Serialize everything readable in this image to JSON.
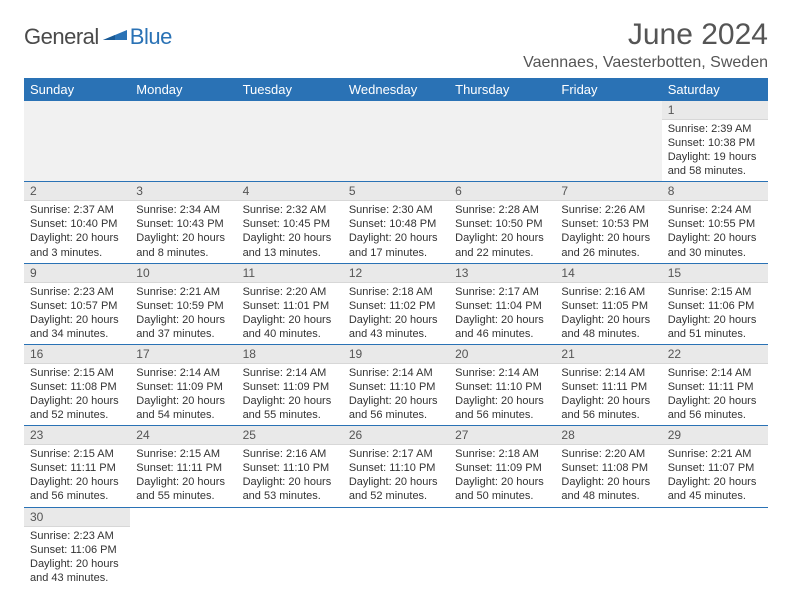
{
  "brand": {
    "gen": "General",
    "blue": "Blue"
  },
  "title": "June 2024",
  "location": "Vaennaes, Vaesterbotten, Sweden",
  "dayHeaders": [
    "Sunday",
    "Monday",
    "Tuesday",
    "Wednesday",
    "Thursday",
    "Friday",
    "Saturday"
  ],
  "colors": {
    "headerBg": "#2a72b5",
    "headerText": "#ffffff",
    "dayHeaderBg": "#e9e9e9",
    "bodyText": "#333333",
    "titleText": "#555555"
  },
  "days": {
    "1": {
      "sunrise": "Sunrise: 2:39 AM",
      "sunset": "Sunset: 10:38 PM",
      "daylight1": "Daylight: 19 hours",
      "daylight2": "and 58 minutes."
    },
    "2": {
      "sunrise": "Sunrise: 2:37 AM",
      "sunset": "Sunset: 10:40 PM",
      "daylight1": "Daylight: 20 hours",
      "daylight2": "and 3 minutes."
    },
    "3": {
      "sunrise": "Sunrise: 2:34 AM",
      "sunset": "Sunset: 10:43 PM",
      "daylight1": "Daylight: 20 hours",
      "daylight2": "and 8 minutes."
    },
    "4": {
      "sunrise": "Sunrise: 2:32 AM",
      "sunset": "Sunset: 10:45 PM",
      "daylight1": "Daylight: 20 hours",
      "daylight2": "and 13 minutes."
    },
    "5": {
      "sunrise": "Sunrise: 2:30 AM",
      "sunset": "Sunset: 10:48 PM",
      "daylight1": "Daylight: 20 hours",
      "daylight2": "and 17 minutes."
    },
    "6": {
      "sunrise": "Sunrise: 2:28 AM",
      "sunset": "Sunset: 10:50 PM",
      "daylight1": "Daylight: 20 hours",
      "daylight2": "and 22 minutes."
    },
    "7": {
      "sunrise": "Sunrise: 2:26 AM",
      "sunset": "Sunset: 10:53 PM",
      "daylight1": "Daylight: 20 hours",
      "daylight2": "and 26 minutes."
    },
    "8": {
      "sunrise": "Sunrise: 2:24 AM",
      "sunset": "Sunset: 10:55 PM",
      "daylight1": "Daylight: 20 hours",
      "daylight2": "and 30 minutes."
    },
    "9": {
      "sunrise": "Sunrise: 2:23 AM",
      "sunset": "Sunset: 10:57 PM",
      "daylight1": "Daylight: 20 hours",
      "daylight2": "and 34 minutes."
    },
    "10": {
      "sunrise": "Sunrise: 2:21 AM",
      "sunset": "Sunset: 10:59 PM",
      "daylight1": "Daylight: 20 hours",
      "daylight2": "and 37 minutes."
    },
    "11": {
      "sunrise": "Sunrise: 2:20 AM",
      "sunset": "Sunset: 11:01 PM",
      "daylight1": "Daylight: 20 hours",
      "daylight2": "and 40 minutes."
    },
    "12": {
      "sunrise": "Sunrise: 2:18 AM",
      "sunset": "Sunset: 11:02 PM",
      "daylight1": "Daylight: 20 hours",
      "daylight2": "and 43 minutes."
    },
    "13": {
      "sunrise": "Sunrise: 2:17 AM",
      "sunset": "Sunset: 11:04 PM",
      "daylight1": "Daylight: 20 hours",
      "daylight2": "and 46 minutes."
    },
    "14": {
      "sunrise": "Sunrise: 2:16 AM",
      "sunset": "Sunset: 11:05 PM",
      "daylight1": "Daylight: 20 hours",
      "daylight2": "and 48 minutes."
    },
    "15": {
      "sunrise": "Sunrise: 2:15 AM",
      "sunset": "Sunset: 11:06 PM",
      "daylight1": "Daylight: 20 hours",
      "daylight2": "and 51 minutes."
    },
    "16": {
      "sunrise": "Sunrise: 2:15 AM",
      "sunset": "Sunset: 11:08 PM",
      "daylight1": "Daylight: 20 hours",
      "daylight2": "and 52 minutes."
    },
    "17": {
      "sunrise": "Sunrise: 2:14 AM",
      "sunset": "Sunset: 11:09 PM",
      "daylight1": "Daylight: 20 hours",
      "daylight2": "and 54 minutes."
    },
    "18": {
      "sunrise": "Sunrise: 2:14 AM",
      "sunset": "Sunset: 11:09 PM",
      "daylight1": "Daylight: 20 hours",
      "daylight2": "and 55 minutes."
    },
    "19": {
      "sunrise": "Sunrise: 2:14 AM",
      "sunset": "Sunset: 11:10 PM",
      "daylight1": "Daylight: 20 hours",
      "daylight2": "and 56 minutes."
    },
    "20": {
      "sunrise": "Sunrise: 2:14 AM",
      "sunset": "Sunset: 11:10 PM",
      "daylight1": "Daylight: 20 hours",
      "daylight2": "and 56 minutes."
    },
    "21": {
      "sunrise": "Sunrise: 2:14 AM",
      "sunset": "Sunset: 11:11 PM",
      "daylight1": "Daylight: 20 hours",
      "daylight2": "and 56 minutes."
    },
    "22": {
      "sunrise": "Sunrise: 2:14 AM",
      "sunset": "Sunset: 11:11 PM",
      "daylight1": "Daylight: 20 hours",
      "daylight2": "and 56 minutes."
    },
    "23": {
      "sunrise": "Sunrise: 2:15 AM",
      "sunset": "Sunset: 11:11 PM",
      "daylight1": "Daylight: 20 hours",
      "daylight2": "and 56 minutes."
    },
    "24": {
      "sunrise": "Sunrise: 2:15 AM",
      "sunset": "Sunset: 11:11 PM",
      "daylight1": "Daylight: 20 hours",
      "daylight2": "and 55 minutes."
    },
    "25": {
      "sunrise": "Sunrise: 2:16 AM",
      "sunset": "Sunset: 11:10 PM",
      "daylight1": "Daylight: 20 hours",
      "daylight2": "and 53 minutes."
    },
    "26": {
      "sunrise": "Sunrise: 2:17 AM",
      "sunset": "Sunset: 11:10 PM",
      "daylight1": "Daylight: 20 hours",
      "daylight2": "and 52 minutes."
    },
    "27": {
      "sunrise": "Sunrise: 2:18 AM",
      "sunset": "Sunset: 11:09 PM",
      "daylight1": "Daylight: 20 hours",
      "daylight2": "and 50 minutes."
    },
    "28": {
      "sunrise": "Sunrise: 2:20 AM",
      "sunset": "Sunset: 11:08 PM",
      "daylight1": "Daylight: 20 hours",
      "daylight2": "and 48 minutes."
    },
    "29": {
      "sunrise": "Sunrise: 2:21 AM",
      "sunset": "Sunset: 11:07 PM",
      "daylight1": "Daylight: 20 hours",
      "daylight2": "and 45 minutes."
    },
    "30": {
      "sunrise": "Sunrise: 2:23 AM",
      "sunset": "Sunset: 11:06 PM",
      "daylight1": "Daylight: 20 hours",
      "daylight2": "and 43 minutes."
    }
  },
  "layout": {
    "firstDayOffset": 6,
    "daysInMonth": 30,
    "columns": 7
  }
}
